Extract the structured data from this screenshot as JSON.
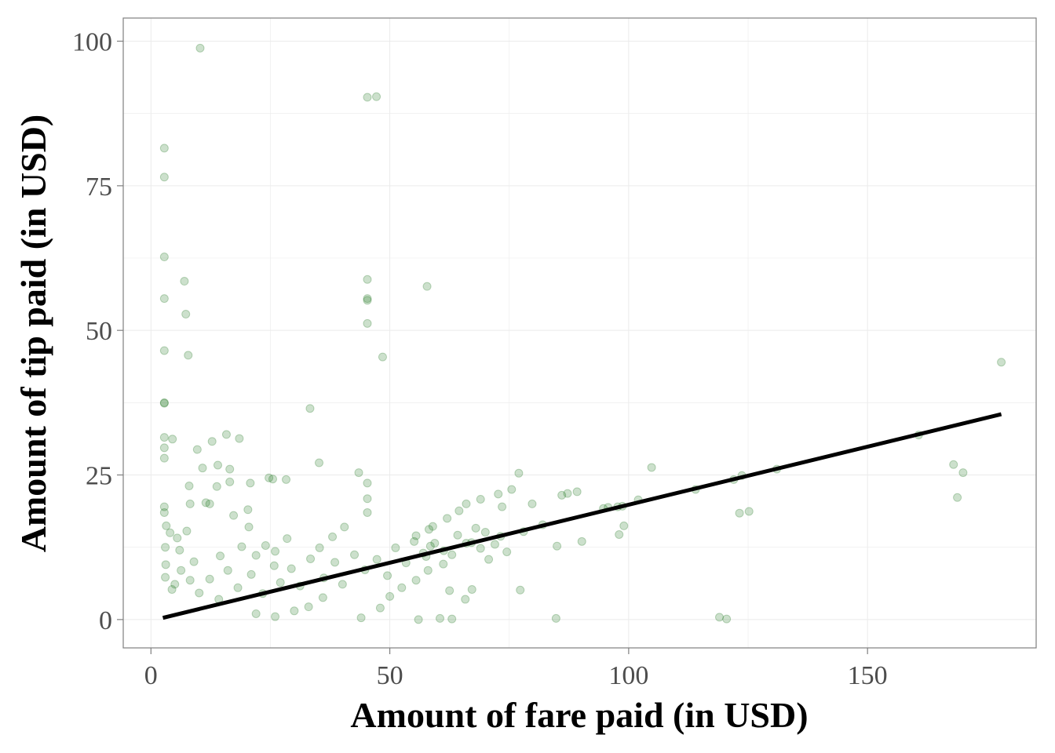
{
  "chart_data": {
    "type": "scatter",
    "xlabel": "Amount of fare paid (in USD)",
    "ylabel": "Amount of tip paid (in USD)",
    "xlim": [
      -5.8,
      185.3
    ],
    "ylim": [
      -4.9,
      104.0
    ],
    "x_ticks": [
      0,
      50,
      100,
      150
    ],
    "y_ticks": [
      0,
      25,
      50,
      75,
      100
    ],
    "x_tick_labels": [
      "0",
      "50",
      "100",
      "150"
    ],
    "y_tick_labels": [
      "0",
      "25",
      "50",
      "75",
      "100"
    ],
    "grid": true,
    "legend": "none",
    "colors": {
      "points": "#006400",
      "trend_line": "#000000",
      "panel_border": "#7f7f7f",
      "grid": "#ebebeb"
    },
    "series": [
      {
        "type": "scatter",
        "opacity": 0.2,
        "points": [
          [
            10.3,
            98.8
          ],
          [
            45.3,
            90.3
          ],
          [
            47.2,
            90.4
          ],
          [
            2.8,
            81.5
          ],
          [
            2.8,
            76.5
          ],
          [
            2.8,
            62.7
          ],
          [
            7.0,
            58.5
          ],
          [
            2.8,
            55.5
          ],
          [
            7.3,
            52.8
          ],
          [
            2.8,
            46.5
          ],
          [
            7.8,
            45.7
          ],
          [
            45.3,
            58.8
          ],
          [
            45.3,
            55.5
          ],
          [
            45.3,
            55.2
          ],
          [
            45.3,
            51.2
          ],
          [
            57.8,
            57.6
          ],
          [
            48.5,
            45.4
          ],
          [
            33.3,
            36.5
          ],
          [
            2.8,
            37.5
          ],
          [
            2.8,
            37.4
          ],
          [
            2.8,
            31.5
          ],
          [
            4.5,
            31.2
          ],
          [
            2.8,
            29.7
          ],
          [
            2.8,
            27.9
          ],
          [
            9.7,
            29.4
          ],
          [
            12.8,
            30.8
          ],
          [
            15.8,
            32.0
          ],
          [
            18.5,
            31.3
          ],
          [
            14.0,
            26.7
          ],
          [
            16.5,
            26.0
          ],
          [
            35.2,
            27.1
          ],
          [
            10.8,
            26.2
          ],
          [
            43.5,
            25.4
          ],
          [
            24.7,
            24.5
          ],
          [
            25.5,
            24.3
          ],
          [
            28.3,
            24.2
          ],
          [
            16.5,
            23.8
          ],
          [
            20.8,
            23.6
          ],
          [
            45.3,
            23.6
          ],
          [
            8.0,
            23.1
          ],
          [
            13.8,
            23.0
          ],
          [
            2.8,
            19.5
          ],
          [
            2.8,
            18.5
          ],
          [
            8.2,
            20.0
          ],
          [
            11.5,
            20.2
          ],
          [
            12.3,
            20.0
          ],
          [
            45.3,
            20.9
          ],
          [
            45.3,
            18.5
          ],
          [
            20.3,
            19.0
          ],
          [
            17.3,
            18.0
          ],
          [
            20.5,
            16.0
          ],
          [
            77.0,
            25.3
          ],
          [
            75.5,
            22.5
          ],
          [
            72.7,
            21.7
          ],
          [
            69.0,
            20.8
          ],
          [
            66.0,
            20.0
          ],
          [
            73.5,
            19.5
          ],
          [
            79.8,
            20.0
          ],
          [
            86.0,
            21.5
          ],
          [
            89.2,
            22.1
          ],
          [
            87.2,
            21.8
          ],
          [
            104.8,
            26.3
          ],
          [
            98.7,
            19.6
          ],
          [
            94.7,
            19.2
          ],
          [
            95.7,
            19.4
          ],
          [
            97.7,
            19.5
          ],
          [
            102.0,
            20.7
          ],
          [
            99.0,
            16.2
          ],
          [
            98.0,
            14.7
          ],
          [
            90.2,
            13.5
          ],
          [
            85.0,
            12.7
          ],
          [
            70.7,
            10.4
          ],
          [
            77.3,
            5.1
          ],
          [
            84.8,
            0.2
          ],
          [
            119.0,
            0.4
          ],
          [
            120.5,
            0.1
          ],
          [
            114.0,
            22.5
          ],
          [
            122.0,
            24.2
          ],
          [
            123.7,
            24.9
          ],
          [
            123.2,
            18.4
          ],
          [
            125.2,
            18.7
          ],
          [
            131.0,
            26.0
          ],
          [
            160.7,
            31.9
          ],
          [
            168.0,
            26.8
          ],
          [
            170.0,
            25.4
          ],
          [
            168.8,
            21.1
          ],
          [
            178.0,
            44.5
          ],
          [
            60.5,
            0.2
          ],
          [
            63.0,
            0.1
          ],
          [
            56.0,
            0.0
          ],
          [
            44.0,
            0.3
          ],
          [
            48.0,
            2.0
          ],
          [
            50.0,
            4.0
          ],
          [
            55.5,
            6.8
          ],
          [
            58.0,
            8.5
          ],
          [
            61.2,
            9.6
          ],
          [
            63.0,
            11.2
          ],
          [
            66.0,
            13.2
          ],
          [
            62.5,
            5.0
          ],
          [
            65.8,
            3.5
          ],
          [
            67.2,
            5.2
          ],
          [
            52.5,
            5.5
          ],
          [
            58.2,
            15.6
          ],
          [
            62.0,
            17.5
          ],
          [
            64.5,
            18.8
          ],
          [
            55.5,
            14.5
          ],
          [
            59.0,
            16.1
          ],
          [
            82.0,
            16.4
          ],
          [
            78.0,
            15.2
          ],
          [
            72.0,
            13.0
          ],
          [
            74.5,
            11.7
          ],
          [
            69.0,
            12.3
          ],
          [
            68.0,
            15.8
          ],
          [
            58.5,
            12.7
          ],
          [
            57.0,
            11.5
          ],
          [
            40.5,
            16.0
          ],
          [
            38.0,
            14.3
          ],
          [
            35.3,
            12.4
          ],
          [
            36.0,
            3.8
          ],
          [
            33.0,
            2.2
          ],
          [
            30.0,
            1.5
          ],
          [
            26.0,
            0.5
          ],
          [
            22.0,
            1.0
          ],
          [
            28.5,
            14.0
          ],
          [
            24.0,
            12.8
          ],
          [
            26.0,
            11.8
          ],
          [
            22.0,
            11.1
          ],
          [
            19.0,
            12.6
          ],
          [
            14.5,
            11.0
          ],
          [
            9.0,
            10.0
          ],
          [
            6.0,
            12.0
          ],
          [
            4.0,
            15.0
          ],
          [
            3.0,
            12.5
          ],
          [
            3.2,
            16.2
          ],
          [
            5.5,
            14.1
          ],
          [
            7.5,
            15.3
          ],
          [
            3.1,
            9.5
          ],
          [
            3.0,
            7.3
          ],
          [
            4.4,
            5.2
          ],
          [
            5.0,
            6.1
          ],
          [
            6.3,
            8.5
          ],
          [
            8.2,
            6.8
          ],
          [
            10.1,
            4.6
          ],
          [
            12.3,
            7.0
          ],
          [
            14.2,
            3.5
          ],
          [
            16.1,
            8.5
          ],
          [
            18.2,
            5.5
          ],
          [
            21.0,
            7.8
          ],
          [
            23.4,
            4.5
          ],
          [
            25.8,
            9.3
          ],
          [
            27.1,
            6.4
          ],
          [
            29.4,
            8.8
          ],
          [
            31.2,
            5.8
          ],
          [
            33.4,
            10.5
          ],
          [
            36.2,
            7.2
          ],
          [
            38.5,
            9.9
          ],
          [
            40.1,
            6.1
          ],
          [
            42.6,
            11.2
          ],
          [
            44.8,
            8.6
          ],
          [
            47.3,
            10.4
          ],
          [
            49.5,
            7.6
          ],
          [
            51.2,
            12.4
          ],
          [
            53.4,
            9.8
          ],
          [
            55.1,
            13.5
          ],
          [
            57.6,
            10.9
          ],
          [
            59.4,
            13.2
          ],
          [
            61.3,
            11.9
          ],
          [
            64.2,
            14.6
          ],
          [
            67.1,
            13.3
          ],
          [
            70.0,
            15.1
          ],
          [
            73.2,
            14.4
          ]
        ]
      }
    ],
    "trend_line": {
      "type": "line",
      "points": [
        [
          2.5,
          0.3
        ],
        [
          178.0,
          35.5
        ]
      ]
    }
  }
}
